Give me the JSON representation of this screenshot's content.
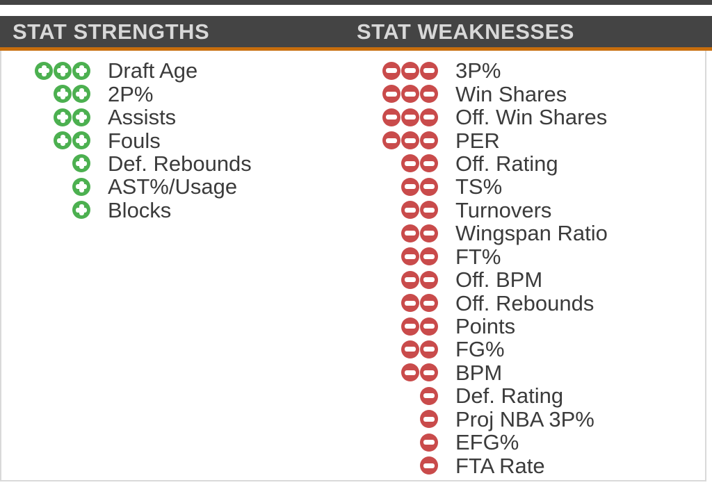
{
  "header": {
    "strengths_title": "STAT STRENGTHS",
    "weaknesses_title": "STAT WEAKNESSES"
  },
  "colors": {
    "header_bg": "#444444",
    "header_text": "#D8D8D8",
    "accent_orange": "#C86E0D",
    "positive_green": "#4CB050",
    "negative_red": "#C94B4B",
    "body_text": "#3B3B3B",
    "border": "#D9D9D9"
  },
  "icons": {
    "positive": "plus-circle-icon",
    "negative": "minus-circle-icon"
  },
  "strengths": [
    {
      "label": "Draft Age",
      "rating": 3
    },
    {
      "label": "2P%",
      "rating": 2
    },
    {
      "label": "Assists",
      "rating": 2
    },
    {
      "label": "Fouls",
      "rating": 2
    },
    {
      "label": "Def. Rebounds",
      "rating": 1
    },
    {
      "label": "AST%/Usage",
      "rating": 1
    },
    {
      "label": "Blocks",
      "rating": 1
    }
  ],
  "weaknesses": [
    {
      "label": "3P%",
      "rating": 3
    },
    {
      "label": "Win Shares",
      "rating": 3
    },
    {
      "label": "Off. Win Shares",
      "rating": 3
    },
    {
      "label": "PER",
      "rating": 3
    },
    {
      "label": "Off. Rating",
      "rating": 2
    },
    {
      "label": "TS%",
      "rating": 2
    },
    {
      "label": "Turnovers",
      "rating": 2
    },
    {
      "label": "Wingspan Ratio",
      "rating": 2
    },
    {
      "label": "FT%",
      "rating": 2
    },
    {
      "label": "Off. BPM",
      "rating": 2
    },
    {
      "label": "Off. Rebounds",
      "rating": 2
    },
    {
      "label": "Points",
      "rating": 2
    },
    {
      "label": "FG%",
      "rating": 2
    },
    {
      "label": "BPM",
      "rating": 2
    },
    {
      "label": "Def. Rating",
      "rating": 1
    },
    {
      "label": "Proj NBA 3P%",
      "rating": 1
    },
    {
      "label": "EFG%",
      "rating": 1
    },
    {
      "label": "FTA Rate",
      "rating": 1
    }
  ]
}
